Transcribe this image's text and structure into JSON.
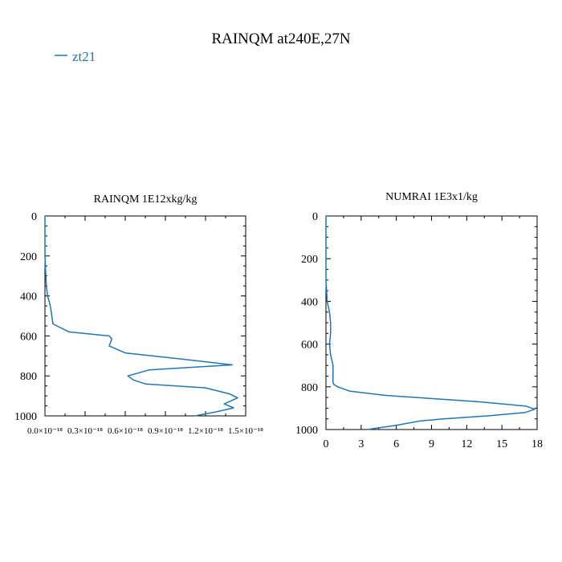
{
  "title": "RAINQM at240E,27N",
  "legend": {
    "label": "zt21",
    "color": "#1f77b4"
  },
  "chart_data": [
    {
      "type": "line",
      "title": "RAINQM  1E12xkg/kg",
      "orientation": "vertical-profile",
      "x_tick_labels": [
        "0.0×10⁻¹⁸",
        "0.3×10⁻¹⁸",
        "0.6×10⁻¹⁸",
        "0.9×10⁻¹⁸",
        "1.2×10⁻¹⁸",
        "1.5×10⁻¹⁸"
      ],
      "x_ticks": [
        0.0,
        3e-19,
        6e-19,
        9e-19,
        1.2e-18,
        1.5e-18
      ],
      "xlim": [
        0.0,
        1.5e-18
      ],
      "y_tick_labels": [
        "0",
        "200",
        "400",
        "600",
        "800",
        "1000"
      ],
      "ylim": [
        1000,
        0
      ],
      "series": [
        {
          "name": "zt21",
          "color": "#1f77b4",
          "x": [
            0,
            0,
            1e-20,
            2e-20,
            4e-20,
            6e-20,
            1.8e-19,
            4.8e-19,
            5e-19,
            4.8e-19,
            6e-19,
            1.01e-18,
            1.4e-18,
            7.8e-19,
            6.2e-19,
            6.6e-19,
            7.5e-19,
            1.2e-18,
            1.38e-18,
            1.44e-18,
            1.34e-18,
            1.41e-18,
            1.28e-18,
            1.12e-18
          ],
          "y": [
            0,
            200,
            350,
            400,
            450,
            540,
            580,
            600,
            615,
            650,
            685,
            715,
            745,
            770,
            800,
            820,
            840,
            860,
            890,
            910,
            940,
            960,
            980,
            1000
          ]
        }
      ]
    },
    {
      "type": "line",
      "title": "NUMRAI  1E3x1/kg",
      "orientation": "vertical-profile",
      "x_tick_labels": [
        "0",
        "3",
        "6",
        "9",
        "12",
        "15",
        "18"
      ],
      "x_ticks": [
        0,
        3,
        6,
        9,
        12,
        15,
        18
      ],
      "xlim": [
        0,
        18
      ],
      "y_tick_labels": [
        "0",
        "200",
        "400",
        "600",
        "800",
        "1000"
      ],
      "ylim": [
        1000,
        0
      ],
      "series": [
        {
          "name": "zt21",
          "color": "#1f77b4",
          "x": [
            0,
            0,
            0.1,
            0.3,
            0.4,
            0.4,
            0.3,
            0.4,
            0.6,
            0.6,
            0.6,
            0.7,
            1.0,
            2.0,
            5.0,
            13.0,
            17.0,
            17.8,
            17.0,
            14.0,
            10.0,
            8.0,
            6.0,
            3.5
          ],
          "y": [
            0,
            300,
            400,
            450,
            500,
            550,
            600,
            650,
            700,
            750,
            780,
            790,
            800,
            820,
            840,
            870,
            890,
            905,
            920,
            935,
            950,
            960,
            980,
            1000
          ]
        }
      ]
    }
  ]
}
